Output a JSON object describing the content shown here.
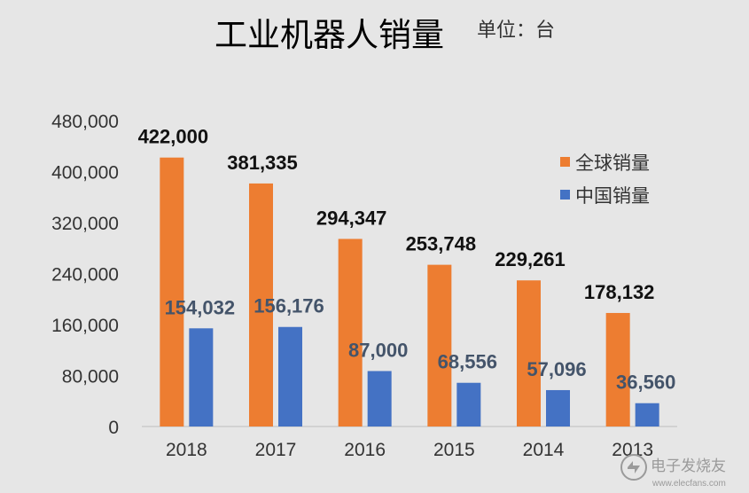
{
  "chart_data": {
    "type": "bar",
    "title": "工业机器人销量",
    "subtitle": "单位：台",
    "categories": [
      "2018",
      "2017",
      "2016",
      "2015",
      "2014",
      "2013"
    ],
    "series": [
      {
        "name": "全球销量",
        "color": "#ed7d31",
        "values": [
          422000,
          381335,
          294347,
          253748,
          229261,
          178132
        ],
        "labels": [
          "422,000",
          "381,335",
          "294,347",
          "253,748",
          "229,261",
          "178,132"
        ]
      },
      {
        "name": "中国销量",
        "color": "#4472c4",
        "values": [
          154032,
          156176,
          87000,
          68556,
          57096,
          36560
        ],
        "labels": [
          "154,032",
          "156,176",
          "87,000",
          "68,556",
          "57,096",
          "36,560"
        ]
      }
    ],
    "yticks": [
      "0",
      "80,000",
      "160,000",
      "240,000",
      "320,000",
      "400,000",
      "480,000"
    ],
    "ylim": [
      0,
      480000
    ],
    "grid": false,
    "legend_position": "top-right"
  },
  "watermark": {
    "text": "电子发烧友",
    "sub": "www.elecfans.com",
    "icon": "elecfans-logo-icon"
  }
}
